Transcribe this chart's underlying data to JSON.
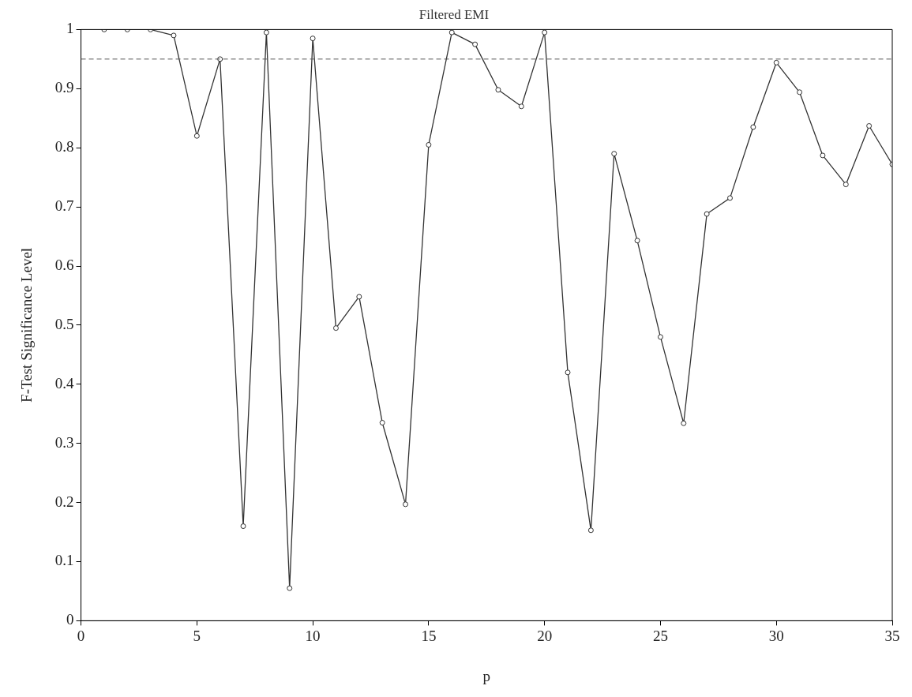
{
  "chart_data": {
    "type": "line",
    "title": "Filtered EMI",
    "xlabel": "p",
    "ylabel": "F-Test Significance Level",
    "x": [
      1,
      2,
      3,
      4,
      5,
      6,
      7,
      8,
      9,
      10,
      11,
      12,
      13,
      14,
      15,
      16,
      17,
      18,
      19,
      20,
      21,
      22,
      23,
      24,
      25,
      26,
      27,
      28,
      29,
      30,
      31,
      32,
      33,
      34,
      35
    ],
    "series": [
      {
        "color": "#333333",
        "values": [
          1.0,
          1.0,
          1.0,
          0.99,
          0.82,
          0.95,
          0.16,
          0.995,
          0.055,
          0.985,
          0.495,
          0.548,
          0.335,
          0.197,
          0.805,
          0.995,
          0.975,
          0.898,
          0.87,
          0.995,
          0.42,
          0.153,
          0.79,
          0.643,
          0.48,
          0.334,
          0.688,
          0.715,
          0.835,
          0.944,
          0.894,
          0.787,
          0.738,
          0.837,
          0.772
        ]
      }
    ],
    "xlim": [
      0,
      35
    ],
    "xticks": [
      0,
      5,
      10,
      15,
      20,
      25,
      30,
      35
    ],
    "ylim": [
      0,
      1
    ],
    "yticks": [
      0,
      0.1,
      0.2,
      0.3,
      0.4,
      0.5,
      0.6,
      0.7,
      0.8,
      0.9,
      1
    ],
    "ref_lines": [
      {
        "axis": "y",
        "value": 0.95,
        "color": "#555555",
        "line_style": "dashed"
      }
    ],
    "grid": false,
    "legend": false,
    "marker": "circle",
    "line_style": "solid"
  }
}
